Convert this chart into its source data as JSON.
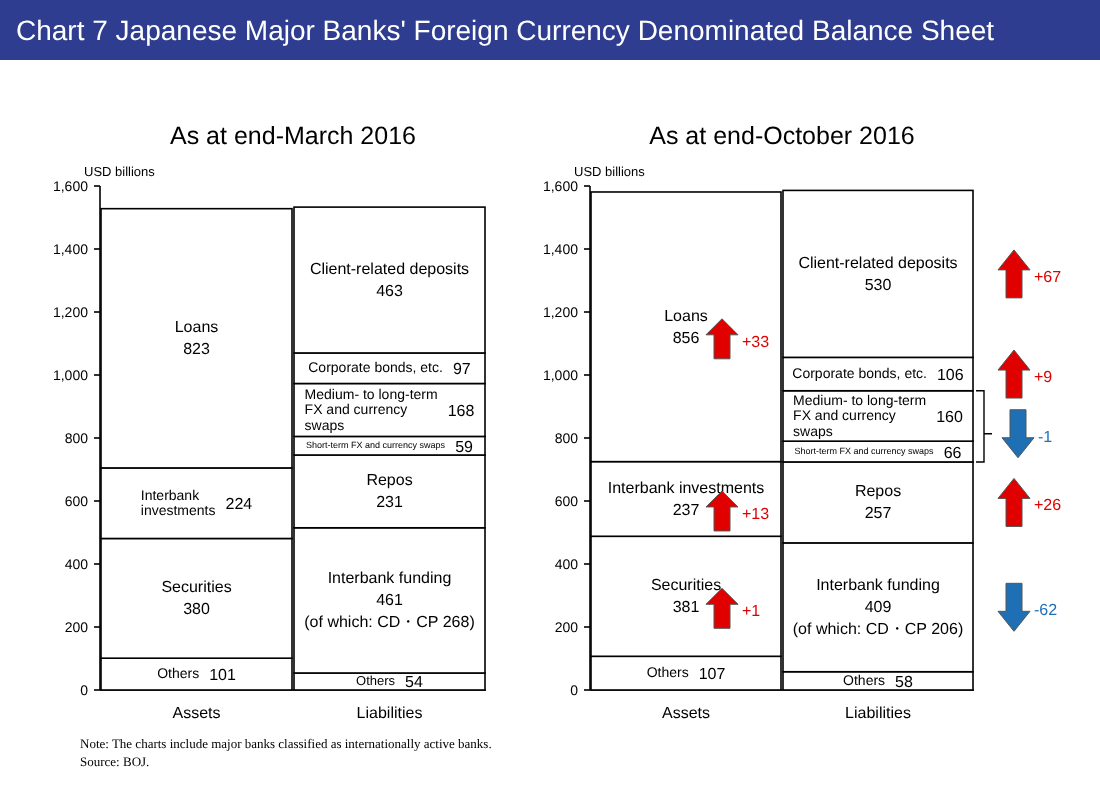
{
  "chart_data": [
    {
      "type": "bar",
      "stacked": true,
      "title": "Chart 7   Japanese Major Banks' Foreign Currency Denominated Balance Sheet",
      "subtitle": "As at end-March 2016",
      "ylabel": "USD billions",
      "categories": [
        "Assets",
        "Liabilities"
      ],
      "ylim": [
        0,
        1600
      ],
      "yticks": [
        0,
        200,
        400,
        600,
        800,
        {
          "value": 1000,
          "label": "1,000"
        },
        {
          "value": 1200,
          "label": "1,200"
        },
        {
          "value": 1400,
          "label": "1,400"
        },
        {
          "value": 1600,
          "label": "1,600"
        }
      ],
      "series": [
        {
          "name": "Others",
          "color": "#ffffff",
          "values": [
            101,
            null
          ],
          "value_labels": [
            "101",
            null
          ]
        },
        {
          "name": "Securities",
          "color": "#ffffff",
          "values": [
            380,
            null
          ],
          "value_labels": [
            "380",
            null
          ]
        },
        {
          "name": "Interbank investments",
          "color": "#ffffff",
          "values": [
            224,
            null
          ],
          "value_labels": [
            "224",
            null
          ]
        },
        {
          "name": "Loans",
          "color": "#ffffff",
          "values": [
            823,
            null
          ],
          "value_labels": [
            "823",
            null
          ]
        },
        {
          "name": "Others",
          "color": "#ffffff",
          "values": [
            null,
            54
          ],
          "value_labels": [
            null,
            "54"
          ]
        },
        {
          "name": "Interbank funding",
          "color": "#ffffff",
          "values": [
            null,
            461
          ],
          "value_labels": [
            null,
            "461 (of which: CD・CP 268)"
          ]
        },
        {
          "name": "Repos",
          "color": "#ffffff",
          "values": [
            null,
            231
          ],
          "value_labels": [
            null,
            "231"
          ]
        },
        {
          "name": "Short-term FX and currency swaps",
          "color": "#ffffff",
          "values": [
            null,
            59
          ],
          "value_labels": [
            null,
            "59"
          ]
        },
        {
          "name": "Medium- to long-term FX and currency swaps",
          "color": "#ffffff",
          "values": [
            null,
            168
          ],
          "value_labels": [
            null,
            "168"
          ]
        },
        {
          "name": "Corporate bonds, etc.",
          "color": "#ffffff",
          "values": [
            null,
            97
          ],
          "value_labels": [
            null,
            "97"
          ]
        },
        {
          "name": "Client-related deposits",
          "color": "#ffffff",
          "values": [
            null,
            463
          ],
          "value_labels": [
            null,
            "463"
          ]
        }
      ],
      "annotations": [
        "Note: The charts include major banks classified as internationally active banks.",
        "Source: BOJ."
      ]
    },
    {
      "type": "bar",
      "stacked": true,
      "title": "As at end-October 2016",
      "ylabel": "USD billions",
      "categories": [
        "Assets",
        "Liabilities"
      ],
      "ylim": [
        0,
        1600
      ],
      "yticks": [
        0,
        200,
        400,
        600,
        800,
        {
          "value": 1000,
          "label": "1,000"
        },
        {
          "value": 1200,
          "label": "1,200"
        },
        {
          "value": 1400,
          "label": "1,400"
        },
        {
          "value": 1600,
          "label": "1,600"
        }
      ],
      "series": [
        {
          "name": "Others",
          "color": "#ffffff",
          "values": [
            107,
            null
          ],
          "value_labels": [
            "107",
            null
          ]
        },
        {
          "name": "Securities",
          "color": "#ffffff",
          "values": [
            381,
            null
          ],
          "value_labels": [
            "381",
            null
          ]
        },
        {
          "name": "Interbank investments",
          "color": "#ffffff",
          "values": [
            237,
            null
          ],
          "value_labels": [
            "237",
            null
          ]
        },
        {
          "name": "Loans",
          "color": "#ffffff",
          "values": [
            856,
            null
          ],
          "value_labels": [
            "856",
            null
          ]
        },
        {
          "name": "Others",
          "color": "#ffffff",
          "values": [
            null,
            58
          ],
          "value_labels": [
            null,
            "58"
          ]
        },
        {
          "name": "Interbank funding",
          "color": "#ffffff",
          "values": [
            null,
            409
          ],
          "value_labels": [
            null,
            "409 (of which: CD・CP 206)"
          ]
        },
        {
          "name": "Repos",
          "color": "#ffffff",
          "values": [
            null,
            257
          ],
          "value_labels": [
            null,
            "257"
          ]
        },
        {
          "name": "Short-term FX and currency swaps",
          "color": "#ffffff",
          "values": [
            null,
            66
          ],
          "value_labels": [
            null,
            "66"
          ]
        },
        {
          "name": "Medium- to long-term FX and currency swaps",
          "color": "#ffffff",
          "values": [
            null,
            160
          ],
          "value_labels": [
            null,
            "160"
          ]
        },
        {
          "name": "Corporate bonds, etc.",
          "color": "#ffffff",
          "values": [
            null,
            106
          ],
          "value_labels": [
            null,
            "106"
          ]
        },
        {
          "name": "Client-related deposits",
          "color": "#ffffff",
          "values": [
            null,
            530
          ],
          "value_labels": [
            null,
            "530"
          ]
        }
      ],
      "annotations": [
        "+33",
        "+13",
        "+1",
        "+67",
        "+9",
        "-1",
        "+26",
        "-62"
      ]
    }
  ]
}
